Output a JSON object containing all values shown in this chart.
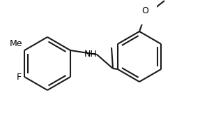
{
  "background_color": "#ffffff",
  "line_color": "#1a1a1a",
  "text_color": "#000000",
  "line_width": 1.5,
  "font_size": 9,
  "figsize": [
    2.87,
    1.86
  ],
  "dpi": 100,
  "lcx": 0.255,
  "lcy": 0.5,
  "lr": 0.21,
  "rcx": 0.7,
  "rcy": 0.455,
  "rr": 0.2,
  "F_label": "F",
  "Me_label": "Me",
  "NH_label": "NH",
  "O_label": "O"
}
